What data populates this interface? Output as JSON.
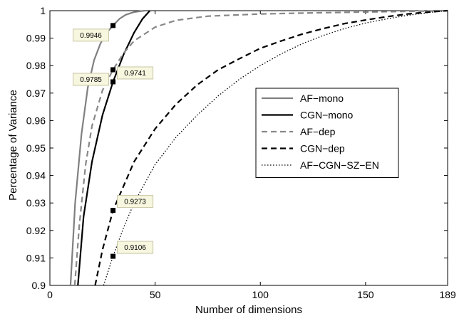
{
  "chart_data": {
    "type": "line",
    "xlabel": "Number of dimensions",
    "ylabel": "Percentage of Variance",
    "xlim": [
      0,
      189
    ],
    "ylim": [
      0.9,
      1
    ],
    "xticks": [
      0,
      50,
      100,
      150,
      189
    ],
    "xtick_labels": [
      "0",
      "50",
      "100",
      "150",
      "189"
    ],
    "yticks": [
      0.9,
      0.91,
      0.92,
      0.93,
      0.94,
      0.95,
      0.96,
      0.97,
      0.98,
      0.99,
      1
    ],
    "ytick_labels": [
      "0.9",
      "0.91",
      "0.92",
      "0.93",
      "0.94",
      "0.95",
      "0.96",
      "0.97",
      "0.98",
      "0.99",
      "1"
    ],
    "grid": false,
    "legend_position": "center-right",
    "series": [
      {
        "name": "AF−mono",
        "color": "#808080",
        "dash": "solid",
        "points": [
          [
            9.8,
            0.9
          ],
          [
            12,
            0.93
          ],
          [
            15,
            0.955
          ],
          [
            18,
            0.972
          ],
          [
            21,
            0.982
          ],
          [
            24,
            0.988
          ],
          [
            27,
            0.992
          ],
          [
            30,
            0.9946
          ],
          [
            33,
            0.997
          ],
          [
            36,
            0.9985
          ],
          [
            40,
            0.9995
          ],
          [
            45,
            1.0
          ]
        ]
      },
      {
        "name": "CGN−mono",
        "color": "#000000",
        "dash": "solid",
        "points": [
          [
            13.3,
            0.9
          ],
          [
            16,
            0.925
          ],
          [
            20,
            0.945
          ],
          [
            25,
            0.962
          ],
          [
            30,
            0.9741
          ],
          [
            35,
            0.984
          ],
          [
            40,
            0.992
          ],
          [
            44,
            0.997
          ],
          [
            47.5,
            1.0
          ]
        ]
      },
      {
        "name": "AF−dep",
        "color": "#888888",
        "dash": "dashed",
        "points": [
          [
            11.8,
            0.9
          ],
          [
            14,
            0.922
          ],
          [
            17,
            0.944
          ],
          [
            20,
            0.958
          ],
          [
            25,
            0.971
          ],
          [
            30,
            0.9785
          ],
          [
            35,
            0.9845
          ],
          [
            40,
            0.989
          ],
          [
            50,
            0.994
          ],
          [
            60,
            0.9965
          ],
          [
            75,
            0.998
          ],
          [
            100,
            0.9988
          ],
          [
            125,
            0.9992
          ],
          [
            150,
            0.9995
          ],
          [
            175,
            0.9998
          ],
          [
            189,
            1.0
          ]
        ]
      },
      {
        "name": "CGN−dep",
        "color": "#000000",
        "dash": "dashed",
        "points": [
          [
            21.5,
            0.9
          ],
          [
            25,
            0.913
          ],
          [
            30,
            0.9273
          ],
          [
            40,
            0.945
          ],
          [
            50,
            0.957
          ],
          [
            60,
            0.966
          ],
          [
            70,
            0.973
          ],
          [
            80,
            0.9785
          ],
          [
            90,
            0.9825
          ],
          [
            100,
            0.9863
          ],
          [
            110,
            0.989
          ],
          [
            120,
            0.9915
          ],
          [
            130,
            0.9935
          ],
          [
            140,
            0.9953
          ],
          [
            150,
            0.9966
          ],
          [
            160,
            0.9978
          ],
          [
            170,
            0.9988
          ],
          [
            180,
            0.9995
          ],
          [
            189,
            1.0
          ]
        ]
      },
      {
        "name": "AF−CGN−SZ−EN",
        "color": "#000000",
        "dash": "dotted",
        "points": [
          [
            25.5,
            0.9
          ],
          [
            30,
            0.9106
          ],
          [
            35,
            0.921
          ],
          [
            40,
            0.93
          ],
          [
            50,
            0.944
          ],
          [
            60,
            0.954
          ],
          [
            70,
            0.962
          ],
          [
            80,
            0.969
          ],
          [
            90,
            0.975
          ],
          [
            100,
            0.98
          ],
          [
            110,
            0.9843
          ],
          [
            120,
            0.988
          ],
          [
            130,
            0.991
          ],
          [
            140,
            0.9935
          ],
          [
            150,
            0.9955
          ],
          [
            160,
            0.997
          ],
          [
            170,
            0.9983
          ],
          [
            180,
            0.9993
          ],
          [
            189,
            1.0
          ]
        ]
      }
    ],
    "annotations": [
      {
        "x": 30,
        "y": 0.9946,
        "label": "0.9946",
        "side": "left"
      },
      {
        "x": 30,
        "y": 0.9785,
        "label": "0.9785",
        "side": "left"
      },
      {
        "x": 30,
        "y": 0.9741,
        "label": "0.9741",
        "side": "right"
      },
      {
        "x": 30,
        "y": 0.9273,
        "label": "0.9273",
        "side": "right"
      },
      {
        "x": 30,
        "y": 0.9106,
        "label": "0.9106",
        "side": "right"
      }
    ]
  }
}
